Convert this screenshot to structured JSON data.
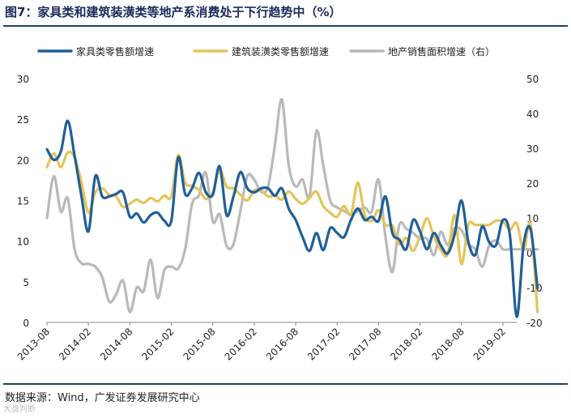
{
  "figure": {
    "title": "图7：家具类和建筑装潢类等地产系消费处于下行趋势中（%）",
    "source": "数据来源：Wind，广发证券发展研究中心",
    "watermark": "大盘判断"
  },
  "chart_data": {
    "type": "line",
    "title": "家具类和建筑装潢类等地产系消费处于下行趋势中（%）",
    "xlabel": "",
    "ylabel_left": "",
    "ylabel_right": "",
    "ylim_left": [
      0,
      30
    ],
    "yticks_left": [
      0,
      5,
      10,
      15,
      20,
      25,
      30
    ],
    "ylim_right": [
      -20,
      50
    ],
    "yticks_right": [
      -20,
      -10,
      0,
      10,
      20,
      30,
      40,
      50
    ],
    "xticks": [
      "2013-08",
      "2014-02",
      "2014-08",
      "2015-02",
      "2015-08",
      "2016-02",
      "2016-08",
      "2017-02",
      "2017-08",
      "2018-02",
      "2018-08",
      "2019-02"
    ],
    "x_start": "2013-08",
    "x_end": "2019-04",
    "legend_position": "top",
    "series": [
      {
        "name": "家具类零售额增速",
        "axis": "left",
        "color": "#1f5f99",
        "values": [
          21.3,
          20,
          21,
          24.8,
          20.5,
          15.5,
          11.2,
          18,
          15.5,
          15.5,
          15.8,
          16,
          13,
          13.4,
          12.3,
          13.2,
          13.5,
          12.5,
          12.5,
          20.3,
          15.8,
          16.5,
          18.4,
          16,
          15.7,
          19.2,
          13.2,
          15.5,
          18.5,
          16.5,
          16,
          16.5,
          16.5,
          15.6,
          16.5,
          14,
          12.6,
          10.5,
          8.8,
          11,
          8.9,
          11.6,
          11,
          10.5,
          12.6,
          14,
          12.6,
          13,
          12.5,
          15.5,
          11,
          10.2,
          9,
          12.6,
          11.2,
          9,
          11,
          9.5,
          8.5,
          10.8,
          15,
          9.9,
          8.3,
          11.8,
          9.9,
          9.5,
          12.6,
          10.8,
          0.7,
          9.6,
          11.5,
          4.2
        ]
      },
      {
        "name": "建筑装潢类零售额增速",
        "axis": "left",
        "color": "#e6c45a",
        "values": [
          19.1,
          20.8,
          19.1,
          20.9,
          20.3,
          17.2,
          13.5,
          16,
          16.5,
          15.7,
          15.5,
          14.2,
          14.6,
          15.1,
          14.7,
          15.3,
          14.9,
          15.6,
          15.5,
          20.6,
          17.2,
          16.8,
          16.3,
          15.2,
          16,
          18.8,
          16.7,
          16.5,
          15.7,
          15,
          16.2,
          16.3,
          15.5,
          15.6,
          15.1,
          16.1,
          15.2,
          14.6,
          15.3,
          16.1,
          14.3,
          13.5,
          13,
          14.3,
          13.3,
          17.2,
          13.2,
          12.5,
          13.8,
          12,
          11.9,
          9.6,
          10.4,
          8.8,
          10.6,
          12.8,
          10.6,
          8.9,
          8.4,
          13.2,
          7.2,
          12,
          12,
          12,
          12,
          12.5,
          12.4,
          11.4,
          12.2,
          8.9,
          12.1,
          1.3
        ]
      },
      {
        "name": "地产销售面积增速（右）",
        "axis": "right",
        "color": "#b9b9b9",
        "values": [
          10,
          22,
          11.8,
          15.6,
          1,
          -3,
          -3.2,
          -4,
          -7,
          -14,
          -12,
          -8,
          -17,
          -10,
          -11,
          -2,
          -13,
          -5,
          -4,
          -4.5,
          1,
          14,
          16.5,
          23,
          9,
          11,
          2,
          2.5,
          12,
          22,
          21,
          17.5,
          19,
          31,
          44,
          25,
          19,
          21,
          16,
          35,
          25,
          15,
          13,
          12,
          11,
          12,
          13,
          11.8,
          21,
          4.5,
          -5.5,
          8,
          6.9,
          5.7,
          4,
          4,
          -0.7,
          6,
          2.3,
          7,
          6.5,
          2.4,
          1,
          -4,
          2,
          3.5,
          1,
          1,
          1,
          1,
          1,
          1
        ]
      }
    ]
  }
}
